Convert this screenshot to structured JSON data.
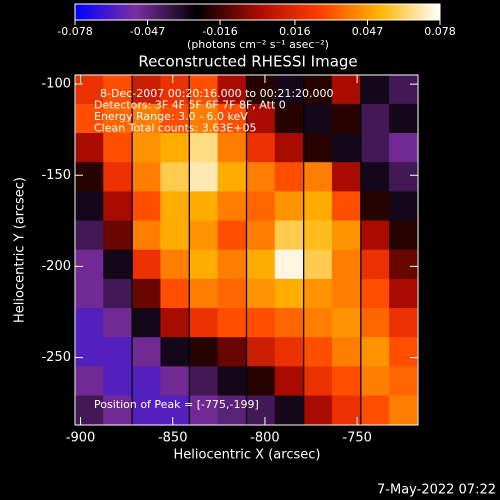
{
  "chart_data": {
    "type": "heatmap",
    "title": "Reconstructed RHESSI Image",
    "x_label": "Heliocentric X (arcsec)",
    "y_label": "Heliocentric Y (arcsec)",
    "colorbar_label": "(photons cm⁻² s⁻¹ asec⁻²)",
    "annotations": [
      "8-Dec-2007 00:20:16.000 to 00:21:20.000",
      "Detectors: 3F 4F 5F 6F 7F 8F, Att 0",
      "Energy Range: 3.0 - 6.0 keV",
      "Clean     Total counts: 3.63E+05"
    ],
    "peak_label": "Position of Peak = [-775,-199]",
    "footer": "7-May-2022 07:22",
    "xlim": [
      -903,
      -717
    ],
    "ylim": [
      -287,
      -95
    ],
    "xticks": [
      -900,
      -850,
      -800,
      -750
    ],
    "yticks": [
      -100,
      -150,
      -200,
      -250
    ],
    "colorbar_lim": [
      -0.078,
      0.078
    ],
    "colorbar_ticks": [
      -0.078,
      -0.047,
      -0.016,
      0.016,
      0.047,
      0.078
    ],
    "colormap": [
      "#0000ff",
      "#7a2ea0",
      "#000000",
      "#a80c00",
      "#ff3c00",
      "#ffb400",
      "#ffffff"
    ],
    "x": [
      -895,
      -880,
      -864,
      -849,
      -833,
      -818,
      -802,
      -787,
      -771,
      -756,
      -740,
      -725
    ],
    "y": [
      -103,
      -119,
      -135,
      -151,
      -167,
      -183,
      -199,
      -215,
      -231,
      -247,
      -263,
      -279
    ],
    "z": [
      [
        0.02,
        0.03,
        0.01,
        0.02,
        0.03,
        0.0,
        -0.02,
        -0.03,
        -0.02,
        0.0,
        -0.03,
        -0.04
      ],
      [
        0.03,
        0.035,
        0.04,
        0.03,
        0.04,
        0.03,
        0.0,
        -0.02,
        -0.03,
        -0.02,
        -0.04,
        -0.03
      ],
      [
        0.0,
        0.03,
        0.045,
        0.05,
        0.065,
        0.04,
        0.02,
        0.0,
        -0.02,
        -0.03,
        -0.04,
        -0.05
      ],
      [
        -0.02,
        0.02,
        0.04,
        0.06,
        0.07,
        0.05,
        0.04,
        0.03,
        0.04,
        0.0,
        -0.03,
        -0.04
      ],
      [
        -0.03,
        0.0,
        0.03,
        0.05,
        0.05,
        0.04,
        0.035,
        0.045,
        0.05,
        0.03,
        -0.02,
        -0.03
      ],
      [
        -0.04,
        -0.01,
        0.04,
        0.05,
        0.045,
        0.03,
        0.04,
        0.06,
        0.055,
        0.045,
        0.0,
        -0.02
      ],
      [
        -0.05,
        -0.03,
        0.02,
        0.04,
        0.05,
        0.04,
        0.05,
        0.075,
        0.06,
        0.04,
        0.02,
        -0.01
      ],
      [
        -0.05,
        -0.04,
        -0.01,
        0.03,
        0.04,
        0.035,
        0.045,
        0.05,
        0.045,
        0.04,
        0.03,
        0.0
      ],
      [
        -0.06,
        -0.05,
        -0.03,
        0.0,
        0.02,
        0.03,
        0.03,
        0.035,
        0.04,
        0.045,
        0.035,
        0.02
      ],
      [
        -0.06,
        -0.06,
        -0.05,
        -0.03,
        -0.02,
        -0.01,
        0.01,
        0.02,
        0.03,
        0.04,
        0.045,
        0.03
      ],
      [
        -0.05,
        -0.06,
        -0.06,
        -0.05,
        -0.04,
        -0.03,
        -0.02,
        0.0,
        0.02,
        0.03,
        0.04,
        0.035
      ],
      [
        -0.04,
        -0.05,
        -0.06,
        -0.06,
        -0.05,
        -0.045,
        -0.04,
        -0.03,
        0.0,
        0.02,
        0.03,
        0.04
      ]
    ]
  }
}
